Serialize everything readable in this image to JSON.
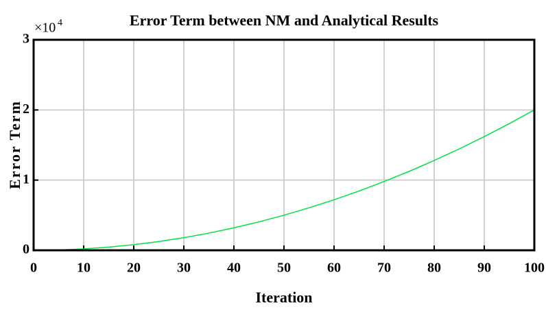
{
  "chart_data": {
    "type": "line",
    "title": "Error Term between NM and Analytical Results",
    "xlabel": "Iteration",
    "ylabel": "Error Term",
    "y_exponent": {
      "base": "×10",
      "power": "4"
    },
    "x": [
      0,
      5,
      10,
      15,
      20,
      25,
      30,
      35,
      40,
      45,
      50,
      55,
      60,
      65,
      70,
      75,
      80,
      85,
      90,
      95,
      100
    ],
    "series": [
      {
        "color": "#00e040",
        "values": [
          0,
          0.005,
          0.02,
          0.045,
          0.08,
          0.125,
          0.18,
          0.245,
          0.32,
          0.405,
          0.5,
          0.605,
          0.72,
          0.845,
          0.98,
          1.125,
          1.28,
          1.445,
          1.62,
          1.805,
          2.0
        ]
      }
    ],
    "xlim": [
      0,
      100
    ],
    "xticks": [
      0,
      10,
      20,
      30,
      40,
      50,
      60,
      70,
      80,
      90,
      100
    ],
    "ylim": [
      0,
      3
    ],
    "yticks": [
      0,
      1,
      2,
      3
    ],
    "grid": true
  }
}
